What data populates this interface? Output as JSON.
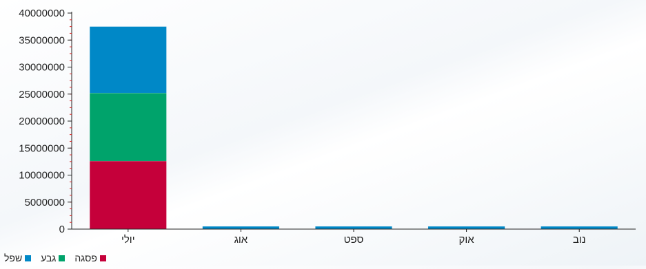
{
  "chart_data": {
    "type": "bar",
    "stacked": true,
    "categories": [
      "יולי",
      "אוג",
      "ספט",
      "אוק",
      "נוב"
    ],
    "series": [
      {
        "name": "פסגה",
        "color": "#c5003a",
        "values": [
          12600000,
          0,
          0,
          0,
          0
        ]
      },
      {
        "name": "גבע",
        "color": "#00a36b",
        "values": [
          12600000,
          0,
          0,
          0,
          0
        ]
      },
      {
        "name": "שפל",
        "color": "#0088c7",
        "values": [
          12300000,
          500000,
          500000,
          500000,
          500000
        ]
      }
    ],
    "ylim": [
      0,
      40000000
    ],
    "yticks": [
      0,
      5000000,
      10000000,
      15000000,
      20000000,
      25000000,
      30000000,
      35000000,
      40000000
    ],
    "ytick_labels": [
      "0",
      "5000000",
      "10000000",
      "15000000",
      "20000000",
      "25000000",
      "30000000",
      "35000000",
      "40000000"
    ],
    "grid": false,
    "legend_position": "bottom-left",
    "title": "",
    "xlabel": "",
    "ylabel": ""
  },
  "legend": [
    {
      "name": "פסגה",
      "color": "#c5003a"
    },
    {
      "name": "גבע",
      "color": "#00a36b"
    },
    {
      "name": "שפל",
      "color": "#0088c7"
    }
  ]
}
